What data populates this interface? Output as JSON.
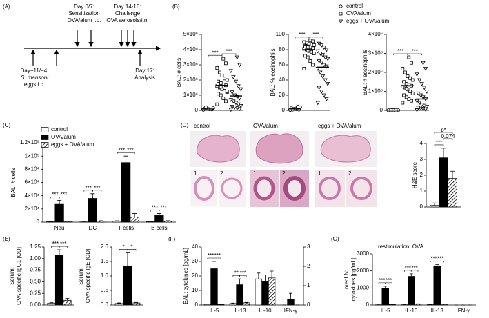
{
  "panel_labels": [
    "(A)",
    "(B)",
    "(C)",
    "(D)",
    "(E)",
    "(F)",
    "(G)"
  ],
  "timeline": {
    "events": [
      {
        "lines": [
          "Day 0/7:",
          "Sensitization",
          "OVA/alum i.p."
        ]
      },
      {
        "lines": [
          "Day 14-16:",
          "Challenge",
          "OVA aerosols/i.n."
        ]
      },
      {
        "lines": [
          "Day−11/−4:",
          "S. mansoni",
          "eggs i.p."
        ]
      },
      {
        "lines": [
          "Day 17:",
          "Analysis"
        ]
      }
    ]
  },
  "histology": {
    "titles": [
      "control",
      "OVA/alum",
      "eggs + OVA/alum"
    ],
    "zoom_labels": [
      [
        "1",
        "2"
      ],
      [
        "1",
        "2"
      ],
      [
        "1",
        "2"
      ]
    ]
  },
  "chart_data": [
    {
      "type": "dotplot",
      "ylabel": "BAL: # cells",
      "ylim": [
        0,
        5000000
      ],
      "yticks": [
        0,
        {
          "value": 1000000,
          "label": "1×10⁶"
        },
        {
          "value": 2000000,
          "label": "2×10⁶"
        },
        {
          "value": 3000000,
          "label": "3×10⁶"
        },
        {
          "value": 4000000,
          "label": "4×10⁶"
        },
        {
          "value": 5000000,
          "label": "5×10⁶"
        }
      ],
      "series": [
        {
          "name": "control",
          "marker": "circle",
          "values": [
            40000,
            60000,
            80000,
            100000,
            120000,
            150000,
            70000,
            90000,
            200000,
            50000
          ],
          "mean": 96000
        },
        {
          "name": "OVA/alum",
          "marker": "square",
          "values": [
            400000,
            600000,
            800000,
            1000000,
            1100000,
            1200000,
            1300000,
            1400000,
            1500000,
            1600000,
            1650000,
            1700000,
            1800000,
            1900000,
            2000000,
            2100000,
            2300000,
            2500000,
            2800000,
            3100000,
            3400000,
            1550000,
            1750000,
            1250000
          ],
          "mean": 1650000
        },
        {
          "name": "eggs + OVA/alum",
          "marker": "triangle",
          "values": [
            50000,
            100000,
            150000,
            200000,
            250000,
            300000,
            400000,
            500000,
            600000,
            700000,
            800000,
            900000,
            1000000,
            1200000,
            1400000,
            1600000,
            1900000,
            2200000,
            2600000,
            3000000,
            3500000
          ],
          "mean": 950000
        }
      ],
      "annotations": [
        "***",
        "***"
      ]
    },
    {
      "type": "dotplot",
      "ylabel": "BAL: % eosinophils",
      "ylim": [
        0,
        100
      ],
      "yticks": [
        0,
        20,
        40,
        60,
        80,
        100
      ],
      "series": [
        {
          "marker": "circle",
          "values": [
            0.5,
            1,
            1.5,
            2,
            3,
            4,
            5,
            2.5,
            1,
            0.8
          ],
          "mean": 2
        },
        {
          "marker": "square",
          "values": [
            55,
            60,
            65,
            70,
            72,
            75,
            77,
            78,
            80,
            81,
            82,
            83,
            84,
            85,
            86,
            87,
            88,
            89,
            90,
            91,
            92,
            79,
            84,
            86
          ],
          "mean": 80
        },
        {
          "marker": "triangle",
          "values": [
            10,
            15,
            20,
            25,
            30,
            35,
            40,
            45,
            50,
            55,
            58,
            60,
            63,
            65,
            68,
            70,
            73,
            75,
            78,
            80,
            83,
            86,
            88
          ],
          "mean": 57
        }
      ],
      "annotations": [
        "***",
        "***"
      ]
    },
    {
      "type": "dotplot",
      "ylabel": "BAL: # eosinophils",
      "ylim": [
        0,
        4000000
      ],
      "yticks": [
        0,
        {
          "value": 1000000,
          "label": "1×10⁶"
        },
        {
          "value": 2000000,
          "label": "2×10⁶"
        },
        {
          "value": 3000000,
          "label": "3×10⁶"
        },
        {
          "value": 4000000,
          "label": "4×10⁶"
        }
      ],
      "series": [
        {
          "marker": "circle",
          "values": [
            5000,
            10000,
            15000,
            20000,
            8000,
            12000,
            6000,
            9000,
            11000,
            7000
          ],
          "mean": 10000
        },
        {
          "marker": "square",
          "values": [
            400000,
            500000,
            600000,
            700000,
            800000,
            900000,
            1000000,
            1100000,
            1200000,
            1250000,
            1300000,
            1350000,
            1400000,
            1500000,
            1600000,
            1700000,
            1800000,
            2000000,
            2200000,
            2500000,
            2800000,
            1150000
          ],
          "mean": 1300000
        },
        {
          "marker": "triangle",
          "values": [
            20000,
            50000,
            80000,
            100000,
            150000,
            200000,
            250000,
            300000,
            400000,
            500000,
            600000,
            700000,
            800000,
            900000,
            1000000,
            1200000,
            1400000,
            1600000,
            1900000,
            2200000,
            2500000
          ],
          "mean": 600000
        }
      ],
      "annotations": [
        "***",
        "***"
      ]
    },
    {
      "type": "bar",
      "ylabel": "BAL: # cells",
      "ylim": [
        0,
        120000
      ],
      "yticks": [
        0,
        {
          "value": 20000,
          "label": "2×10⁴"
        },
        {
          "value": 40000,
          "label": "4×10⁴"
        },
        {
          "value": 60000,
          "label": "6×10⁴"
        },
        {
          "value": 80000,
          "label": "8×10⁴"
        },
        {
          "value": 100000,
          "label": "1×10⁵"
        },
        {
          "value": 120000,
          "label": "1.2×10⁵"
        }
      ],
      "legend": "top-left",
      "categories": [
        "Neu",
        "DC",
        "T cells",
        "B cells"
      ],
      "series": [
        {
          "name": "control",
          "fill": "white",
          "values": [
            500,
            300,
            1500,
            800
          ],
          "errors": [
            200,
            100,
            500,
            300
          ]
        },
        {
          "name": "OVA/alum",
          "fill": "black",
          "values": [
            27000,
            36000,
            90000,
            10000
          ],
          "errors": [
            6000,
            7000,
            10000,
            3000
          ]
        },
        {
          "name": "eggs + OVA/alum",
          "fill": "hatched",
          "values": [
            1000,
            1500,
            8000,
            1500
          ],
          "errors": [
            400,
            500,
            5000,
            700
          ]
        }
      ],
      "annotations": [
        "***",
        "***",
        "***",
        "***",
        "***",
        "***",
        "***",
        "***"
      ]
    },
    {
      "type": "bar",
      "ylabel": "H&E score",
      "ylim": [
        0,
        4
      ],
      "yticks": [
        0,
        1,
        2,
        3,
        4
      ],
      "categories": [
        null
      ],
      "series": [
        {
          "fill": "white",
          "values": [
            0.1
          ],
          "errors": [
            0.15
          ]
        },
        {
          "fill": "black",
          "values": [
            3.1
          ],
          "errors": [
            0.6
          ]
        },
        {
          "fill": "hatched",
          "values": [
            1.8
          ],
          "errors": [
            0.45
          ]
        }
      ],
      "annotations": [
        "***",
        "p*",
        "0.074"
      ]
    },
    {
      "type": "bar",
      "ylabel": [
        "Serum:",
        "OVA-specific IgG1 [OD]"
      ],
      "ylim": [
        0,
        1.25
      ],
      "yticks": [
        {
          "value": 0,
          "label": "0.00"
        },
        0.25,
        {
          "value": 0.5,
          "label": "0.50"
        },
        0.75,
        {
          "value": 1,
          "label": "1.00"
        },
        1.25
      ],
      "categories": [
        null
      ],
      "series": [
        {
          "fill": "white",
          "values": [
            0.04
          ],
          "errors": [
            0.01
          ]
        },
        {
          "fill": "black",
          "values": [
            1.07
          ],
          "errors": [
            0.12
          ]
        },
        {
          "fill": "hatched",
          "values": [
            0.1
          ],
          "errors": [
            0.04
          ]
        }
      ],
      "annotations": [
        "***",
        "***"
      ]
    },
    {
      "type": "bar",
      "ylabel": [
        "Serum:",
        "OVA-specific IgE [OD]"
      ],
      "ylim": [
        0,
        2
      ],
      "yticks": [
        {
          "value": 0,
          "label": "0.0"
        },
        0.5,
        {
          "value": 1,
          "label": "1.0"
        },
        1.5,
        {
          "value": 2,
          "label": "2.0"
        }
      ],
      "categories": [
        null
      ],
      "series": [
        {
          "fill": "white",
          "values": [
            0.05
          ],
          "errors": [
            0.02
          ]
        },
        {
          "fill": "black",
          "values": [
            1.35
          ],
          "errors": [
            0.45
          ]
        },
        {
          "fill": "hatched",
          "values": [
            0.07
          ],
          "errors": [
            0.02
          ]
        }
      ],
      "annotations": [
        "*",
        "*"
      ]
    },
    {
      "type": "bar",
      "ylabel": "BAL: cytokines [pg/mL]",
      "ylim": [
        0,
        40
      ],
      "yticks": [
        0,
        10,
        20,
        30,
        40
      ],
      "y2lim": [
        0,
        3
      ],
      "y2ticks": [
        0,
        1,
        2,
        3
      ],
      "categories": [
        "IL-5",
        "IL-13",
        "IL-10",
        "IFN-γ"
      ],
      "category_axis": [
        "y",
        "y",
        "y2",
        "y2"
      ],
      "series": [
        {
          "fill": "white",
          "values": [
            0.5,
            1,
            1.35,
            0
          ],
          "errors": [
            0.2,
            0.3,
            0.3,
            0
          ]
        },
        {
          "fill": "black",
          "values": [
            25,
            14,
            1.2,
            0.3
          ],
          "errors": [
            5,
            4,
            0.35,
            0.3
          ]
        },
        {
          "fill": "hatched",
          "values": [
            0.3,
            1.5,
            1.4,
            0
          ],
          "errors": [
            0.1,
            0.3,
            0.35,
            0
          ]
        }
      ],
      "annotations": [
        "***",
        "***",
        "**",
        "***"
      ]
    },
    {
      "type": "bar",
      "subtitle": "restimulation: OVA",
      "ylabel": [
        "medLN:",
        "cytokines [pg/mL]"
      ],
      "ylim": [
        0,
        3000
      ],
      "yticks": [
        0,
        1000,
        2000,
        3000
      ],
      "categories": [
        "IL-5",
        "IL-10",
        "IL-13",
        "IFN-γ"
      ],
      "series": [
        {
          "fill": "white",
          "values": [
            10,
            15,
            20,
            0
          ],
          "errors": [
            5,
            5,
            5,
            0
          ]
        },
        {
          "fill": "black",
          "values": [
            1000,
            1680,
            2300,
            0
          ],
          "errors": [
            100,
            150,
            80,
            0
          ]
        },
        {
          "fill": "hatched",
          "values": [
            30,
            50,
            40,
            0
          ],
          "errors": [
            10,
            20,
            10,
            0
          ]
        }
      ],
      "annotations": [
        "***",
        "***",
        "***",
        "***",
        "***",
        "***"
      ]
    }
  ]
}
